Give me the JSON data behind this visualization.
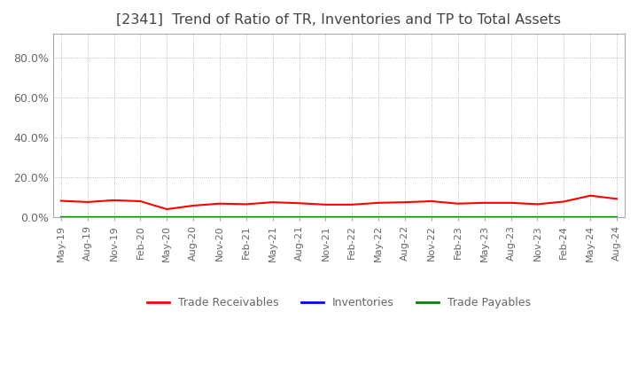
{
  "title": "[2341]  Trend of Ratio of TR, Inventories and TP to Total Assets",
  "title_fontsize": 11.5,
  "title_color": "#444444",
  "title_fontweight": "normal",
  "ylim": [
    0,
    0.92
  ],
  "yticks": [
    0.0,
    0.2,
    0.4,
    0.6,
    0.8
  ],
  "background_color": "#ffffff",
  "plot_bg_color": "#ffffff",
  "grid_color": "#aaaaaa",
  "x_labels": [
    "May-19",
    "Aug-19",
    "Nov-19",
    "Feb-20",
    "May-20",
    "Aug-20",
    "Nov-20",
    "Feb-21",
    "May-21",
    "Aug-21",
    "Nov-21",
    "Feb-22",
    "May-22",
    "Aug-22",
    "Nov-22",
    "Feb-23",
    "May-23",
    "Aug-23",
    "Nov-23",
    "Feb-24",
    "May-24",
    "Aug-24"
  ],
  "trade_receivables": [
    0.082,
    0.076,
    0.085,
    0.08,
    0.04,
    0.058,
    0.068,
    0.065,
    0.075,
    0.07,
    0.063,
    0.063,
    0.072,
    0.075,
    0.08,
    0.068,
    0.072,
    0.072,
    0.065,
    0.078,
    0.108,
    0.092
  ],
  "inventories": [
    0.001,
    0.001,
    0.001,
    0.001,
    0.001,
    0.001,
    0.001,
    0.001,
    0.001,
    0.001,
    0.001,
    0.001,
    0.001,
    0.001,
    0.001,
    0.001,
    0.001,
    0.001,
    0.001,
    0.001,
    0.001,
    0.001
  ],
  "trade_payables": [
    0.0005,
    0.0005,
    0.0005,
    0.0005,
    0.0005,
    0.0005,
    0.0005,
    0.0005,
    0.0005,
    0.0005,
    0.0005,
    0.0005,
    0.0005,
    0.0005,
    0.0005,
    0.0005,
    0.0005,
    0.0005,
    0.0005,
    0.0005,
    0.0005,
    0.0005
  ],
  "line_colors": {
    "trade_receivables": "#ff0000",
    "inventories": "#0000ff",
    "trade_payables": "#008000"
  },
  "line_width": 1.5,
  "legend_labels": [
    "Trade Receivables",
    "Inventories",
    "Trade Payables"
  ],
  "legend_colors": [
    "#ff0000",
    "#0000ff",
    "#008000"
  ],
  "tick_label_color": "#666666",
  "tick_fontsize": 8
}
